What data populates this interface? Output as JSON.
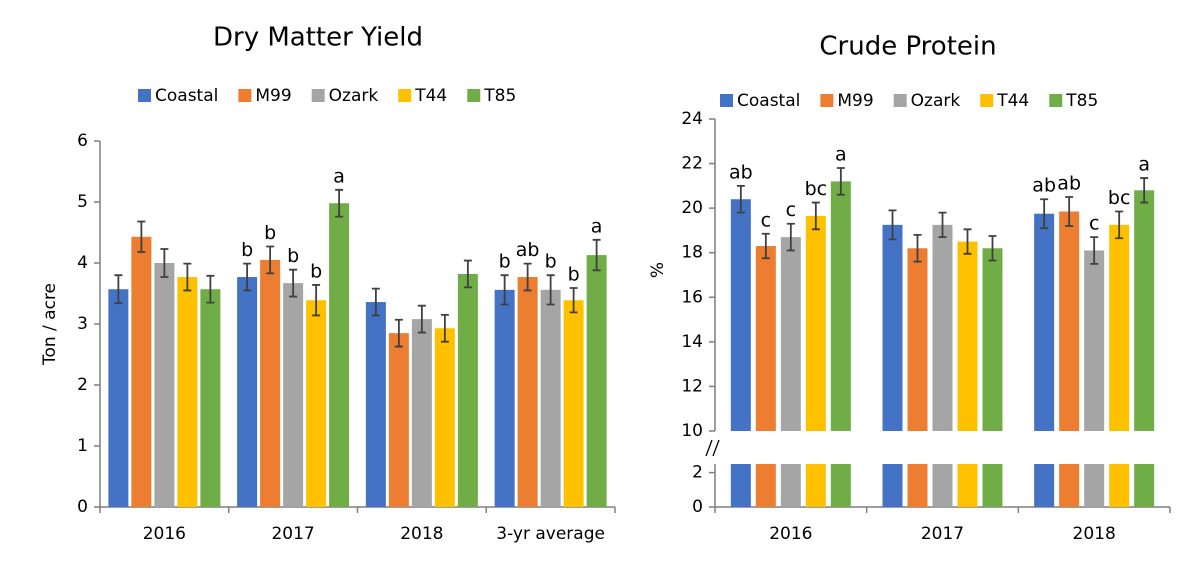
{
  "chart_data": [
    {
      "type": "bar",
      "title": "Dry Matter Yield",
      "ylabel": "Ton / acre",
      "categories": [
        "2016",
        "2017",
        "2018",
        "3-yr average"
      ],
      "series": [
        {
          "name": "Coastal",
          "color": "#4472c4",
          "values": [
            3.57,
            3.77,
            3.36,
            3.56
          ],
          "errors": [
            0.23,
            0.22,
            0.22,
            0.24
          ],
          "letters": [
            null,
            "b",
            null,
            "b"
          ]
        },
        {
          "name": "M99",
          "color": "#ed7d31",
          "values": [
            4.43,
            4.05,
            2.85,
            3.77
          ],
          "errors": [
            0.25,
            0.22,
            0.22,
            0.22
          ],
          "letters": [
            null,
            "b",
            null,
            "ab"
          ]
        },
        {
          "name": "Ozark",
          "color": "#a5a5a5",
          "values": [
            4.0,
            3.67,
            3.08,
            3.56
          ],
          "errors": [
            0.23,
            0.22,
            0.22,
            0.24
          ],
          "letters": [
            null,
            "b",
            null,
            "b"
          ]
        },
        {
          "name": "T44",
          "color": "#ffc000",
          "values": [
            3.77,
            3.39,
            2.93,
            3.39
          ],
          "errors": [
            0.22,
            0.25,
            0.22,
            0.2
          ],
          "letters": [
            null,
            "b",
            null,
            "b"
          ]
        },
        {
          "name": "T85",
          "color": "#70ad47",
          "values": [
            3.57,
            4.98,
            3.82,
            4.13
          ],
          "errors": [
            0.22,
            0.22,
            0.22,
            0.25
          ],
          "letters": [
            null,
            "a",
            null,
            "a"
          ]
        }
      ],
      "ylim": [
        0,
        6
      ],
      "yticks": [
        0,
        1,
        2,
        3,
        4,
        5,
        6
      ],
      "grid": false,
      "legend": "top"
    },
    {
      "type": "bar",
      "title": "Crude Protein",
      "ylabel": "%",
      "categories": [
        "2016",
        "2017",
        "2018"
      ],
      "series": [
        {
          "name": "Coastal",
          "color": "#4472c4",
          "values": [
            20.4,
            19.25,
            19.75
          ],
          "errors": [
            0.6,
            0.65,
            0.65
          ],
          "letters": [
            "ab",
            null,
            "ab"
          ]
        },
        {
          "name": "M99",
          "color": "#ed7d31",
          "values": [
            18.3,
            18.2,
            19.85
          ],
          "errors": [
            0.55,
            0.6,
            0.65
          ],
          "letters": [
            "c",
            null,
            "ab"
          ]
        },
        {
          "name": "Ozark",
          "color": "#a5a5a5",
          "values": [
            18.7,
            19.25,
            18.1
          ],
          "errors": [
            0.6,
            0.55,
            0.6
          ],
          "letters": [
            "c",
            null,
            "c"
          ]
        },
        {
          "name": "T44",
          "color": "#ffc000",
          "values": [
            19.65,
            18.5,
            19.25
          ],
          "errors": [
            0.6,
            0.55,
            0.6
          ],
          "letters": [
            "bc",
            null,
            "bc"
          ]
        },
        {
          "name": "T85",
          "color": "#70ad47",
          "values": [
            21.2,
            18.2,
            20.8
          ],
          "errors": [
            0.6,
            0.55,
            0.55
          ],
          "letters": [
            "a",
            null,
            "a"
          ]
        }
      ],
      "ylim": [
        0,
        24
      ],
      "y_break": [
        2.5,
        10
      ],
      "yticks": [
        0,
        2,
        10,
        12,
        14,
        16,
        18,
        20,
        22,
        24
      ],
      "grid": false,
      "legend": "top"
    }
  ]
}
